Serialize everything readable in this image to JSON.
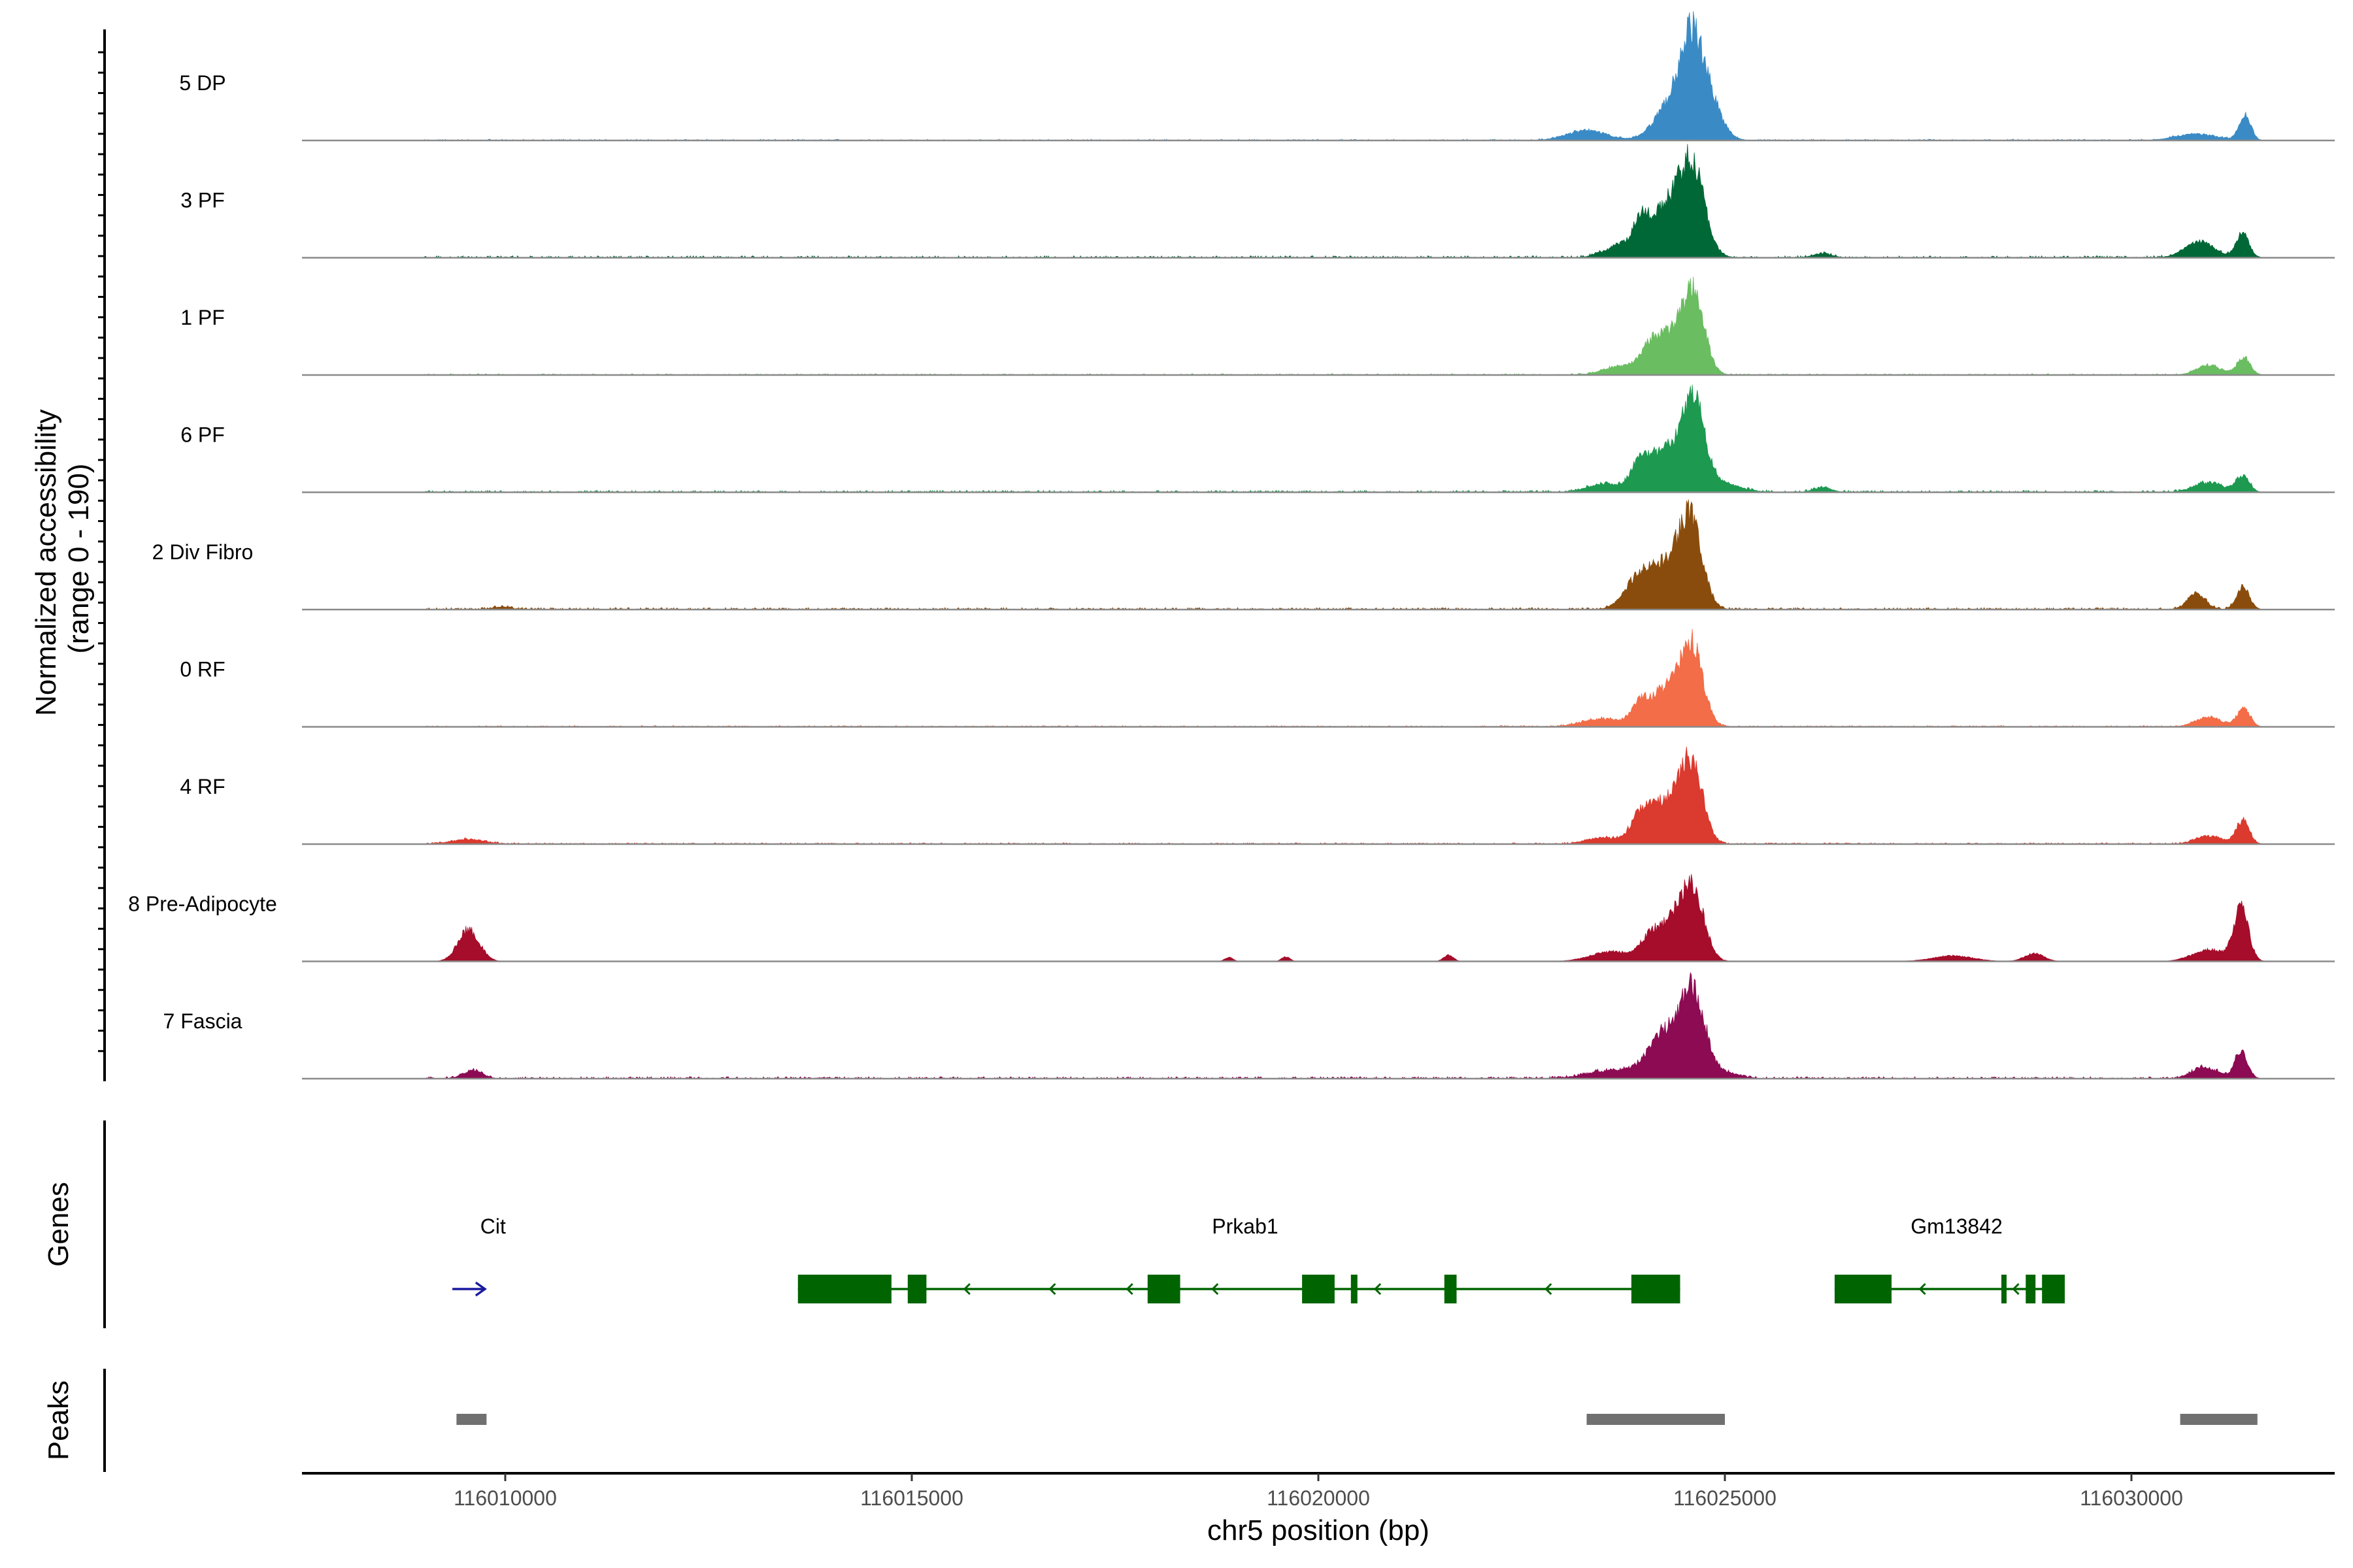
{
  "chart_data": {
    "type": "area",
    "genomic_range": [
      116007500,
      116032500
    ],
    "y_axis_title_line1": "Normalized accessibility",
    "y_axis_title_line2": "(range 0 - 190)",
    "y_range": [
      0,
      190
    ],
    "x_axis_title": "chr5 position (bp)",
    "x_ticks": [
      116010000,
      116015000,
      116020000,
      116025000,
      116030000
    ],
    "x_tick_labels": [
      "116010000",
      "116015000",
      "116020000",
      "116025000",
      "116030000"
    ],
    "tracks": [
      {
        "name": "5 DP",
        "color": "#3a8bc5",
        "noise": 2,
        "noise_prob": 0.35,
        "noise_range": [
          116009000,
          116031500
        ],
        "peaks": [
          [
            116024350,
            200,
            0.48
          ],
          [
            116024580,
            130,
            0.92
          ],
          [
            116024780,
            160,
            0.55
          ],
          [
            116023300,
            250,
            0.12
          ],
          [
            116031400,
            70,
            0.32
          ],
          [
            116030800,
            250,
            0.08
          ]
        ]
      },
      {
        "name": "3 PF",
        "color": "#006837",
        "noise": 3,
        "noise_prob": 0.4,
        "noise_range": [
          116009000,
          116031500
        ],
        "peaks": [
          [
            116024280,
            260,
            0.62
          ],
          [
            116024600,
            150,
            0.95
          ],
          [
            116023700,
            200,
            0.12
          ],
          [
            116023960,
            70,
            0.25
          ],
          [
            116030830,
            180,
            0.2
          ],
          [
            116031370,
            80,
            0.3
          ],
          [
            116026200,
            120,
            0.05
          ]
        ]
      },
      {
        "name": "1 PF",
        "color": "#6abd61",
        "noise": 2,
        "noise_prob": 0.4,
        "noise_range": [
          116009000,
          116031500
        ],
        "peaks": [
          [
            116024300,
            220,
            0.52
          ],
          [
            116024620,
            130,
            0.9
          ],
          [
            116023700,
            200,
            0.1
          ],
          [
            116024050,
            90,
            0.12
          ],
          [
            116030950,
            150,
            0.12
          ],
          [
            116031380,
            80,
            0.22
          ]
        ]
      },
      {
        "name": "6 PF",
        "color": "#1d9950",
        "noise": 3,
        "noise_prob": 0.45,
        "noise_range": [
          116009000,
          116031500
        ],
        "peaks": [
          [
            116024300,
            240,
            0.55
          ],
          [
            116024620,
            130,
            0.92
          ],
          [
            116023950,
            110,
            0.25
          ],
          [
            116023500,
            200,
            0.1
          ],
          [
            116024900,
            250,
            0.12
          ],
          [
            116030950,
            180,
            0.12
          ],
          [
            116031370,
            80,
            0.2
          ],
          [
            116026200,
            110,
            0.06
          ]
        ]
      },
      {
        "name": "2 Div Fibro",
        "color": "#8a4c0c",
        "noise": 3,
        "noise_prob": 0.5,
        "noise_range": [
          116009000,
          116031500
        ],
        "peaks": [
          [
            116024250,
            230,
            0.55
          ],
          [
            116024580,
            140,
            1.0
          ],
          [
            116023900,
            160,
            0.25
          ],
          [
            116030800,
            110,
            0.2
          ],
          [
            116031370,
            80,
            0.28
          ],
          [
            116009950,
            120,
            0.03
          ]
        ]
      },
      {
        "name": "0 RF",
        "color": "#f26d48",
        "noise": 2,
        "noise_prob": 0.45,
        "noise_range": [
          116009000,
          116031500
        ],
        "peaks": [
          [
            116024280,
            220,
            0.48
          ],
          [
            116024600,
            130,
            0.92
          ],
          [
            116023500,
            250,
            0.1
          ],
          [
            116023950,
            90,
            0.18
          ],
          [
            116030950,
            160,
            0.12
          ],
          [
            116031380,
            80,
            0.22
          ]
        ]
      },
      {
        "name": "4 RF",
        "color": "#db3a2f",
        "noise": 2,
        "noise_prob": 0.5,
        "noise_range": [
          116009000,
          116031500
        ],
        "peaks": [
          [
            116024280,
            220,
            0.55
          ],
          [
            116024600,
            130,
            0.9
          ],
          [
            116023950,
            110,
            0.25
          ],
          [
            116023500,
            200,
            0.08
          ],
          [
            116030950,
            160,
            0.1
          ],
          [
            116031370,
            80,
            0.3
          ],
          [
            116009550,
            200,
            0.06
          ]
        ]
      },
      {
        "name": "8 Pre-Adipocyte",
        "color": "#a50d2b",
        "noise": 0,
        "noise_prob": 0.35,
        "noise_range": [
          116009000,
          116031500
        ],
        "peaks": [
          [
            116024300,
            200,
            0.45
          ],
          [
            116024600,
            140,
            0.85
          ],
          [
            116009550,
            130,
            0.4
          ],
          [
            116031350,
            90,
            0.65
          ],
          [
            116030950,
            200,
            0.15
          ],
          [
            116023600,
            250,
            0.12
          ],
          [
            116024050,
            100,
            0.12
          ],
          [
            116021600,
            60,
            0.08
          ],
          [
            116019600,
            50,
            0.06
          ],
          [
            116018900,
            50,
            0.05
          ],
          [
            116027800,
            250,
            0.07
          ],
          [
            116028800,
            120,
            0.1
          ]
        ]
      },
      {
        "name": "7 Fascia",
        "color": "#8c0b53",
        "noise": 3,
        "noise_prob": 0.5,
        "noise_range": [
          116009000,
          116031500
        ],
        "peaks": [
          [
            116024300,
            220,
            0.6
          ],
          [
            116024620,
            140,
            0.9
          ],
          [
            116023600,
            300,
            0.1
          ],
          [
            116024950,
            200,
            0.08
          ],
          [
            116031350,
            80,
            0.33
          ],
          [
            116030900,
            160,
            0.14
          ],
          [
            116009600,
            120,
            0.1
          ]
        ]
      }
    ]
  },
  "genes_panel": {
    "title": "Genes",
    "genes": [
      {
        "name": "Cit",
        "strand": "+",
        "color": "#1a1a9e",
        "label_pos": 116009850,
        "arrow_start": 116009350,
        "arrow_end": 116009750,
        "line_start": null,
        "line_end": null,
        "exons": [],
        "chevrons": []
      },
      {
        "name": "Prkab1",
        "strand": "-",
        "color": "#006400",
        "label_pos": 116019100,
        "line_start": 116013600,
        "line_end": 116024450,
        "exons": [
          [
            116013600,
            116014750
          ],
          [
            116014950,
            116015180
          ],
          [
            116017900,
            116018300
          ],
          [
            116019800,
            116020200
          ],
          [
            116020400,
            116020480
          ],
          [
            116021550,
            116021700
          ],
          [
            116023850,
            116024450
          ]
        ],
        "chevrons": [
          116015650,
          116016700,
          116017650,
          116018700,
          116020700,
          116022800
        ]
      },
      {
        "name": "Gm13842",
        "strand": "-",
        "color": "#006400",
        "label_pos": 116027850,
        "line_start": 116026350,
        "line_end": 116029180,
        "exons": [
          [
            116026350,
            116027050
          ],
          [
            116028400,
            116028450
          ],
          [
            116028700,
            116028820
          ],
          [
            116028900,
            116029180
          ]
        ],
        "chevrons": [
          116027400,
          116028550
        ]
      }
    ]
  },
  "peaks_panel": {
    "title": "Peaks",
    "color": "#707070",
    "peaks": [
      [
        116009400,
        116009770
      ],
      [
        116023300,
        116025000
      ],
      [
        116030600,
        116031550
      ]
    ]
  }
}
